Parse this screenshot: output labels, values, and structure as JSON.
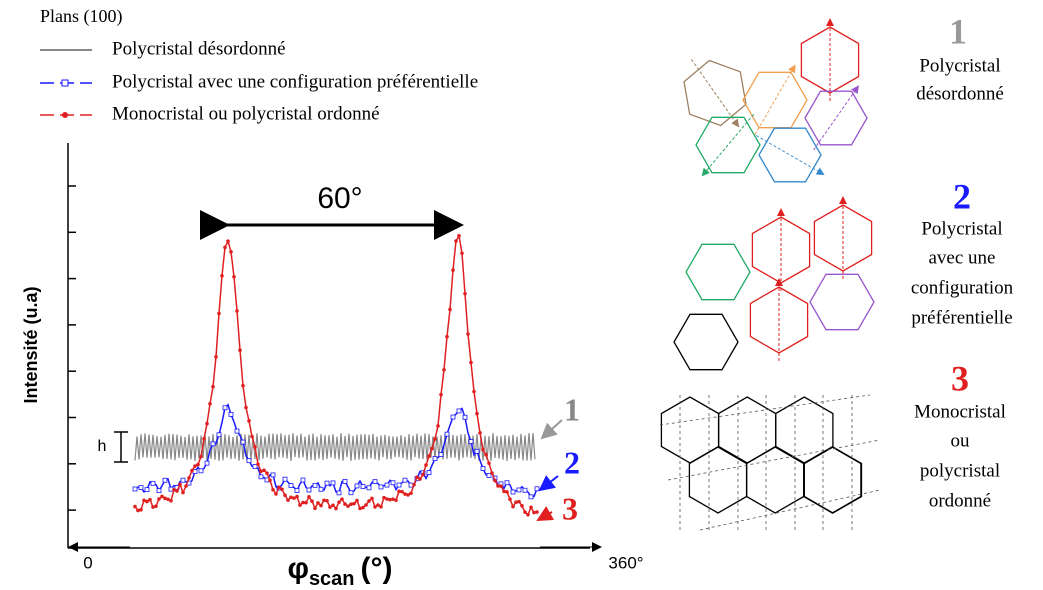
{
  "legend": {
    "title": "Plans (100)",
    "items": [
      "Polycristal désordonné",
      "Polycristal avec une configuration préférentielle",
      "Monocristal ou polycristal ordonné"
    ]
  },
  "plot": {
    "y_label": "Intensité (u.a)",
    "x_label_main": "φ",
    "x_label_sub": "scan",
    "x_label_unit": "(°)",
    "x_start": "0",
    "x_end": "360°",
    "peak_spacing": "60°",
    "h": "h",
    "curve_labels": [
      "1",
      "2",
      "3"
    ]
  },
  "panels": [
    {
      "number": "1",
      "caption_lines": [
        "Polycristal",
        "désordonné"
      ]
    },
    {
      "number": "2",
      "caption_lines": [
        "Polycristal",
        "avec une",
        "configuration",
        "préférentielle"
      ]
    },
    {
      "number": "3",
      "caption_lines": [
        "Monocristal",
        "ou",
        "polycristal",
        "ordonné"
      ]
    }
  ]
}
